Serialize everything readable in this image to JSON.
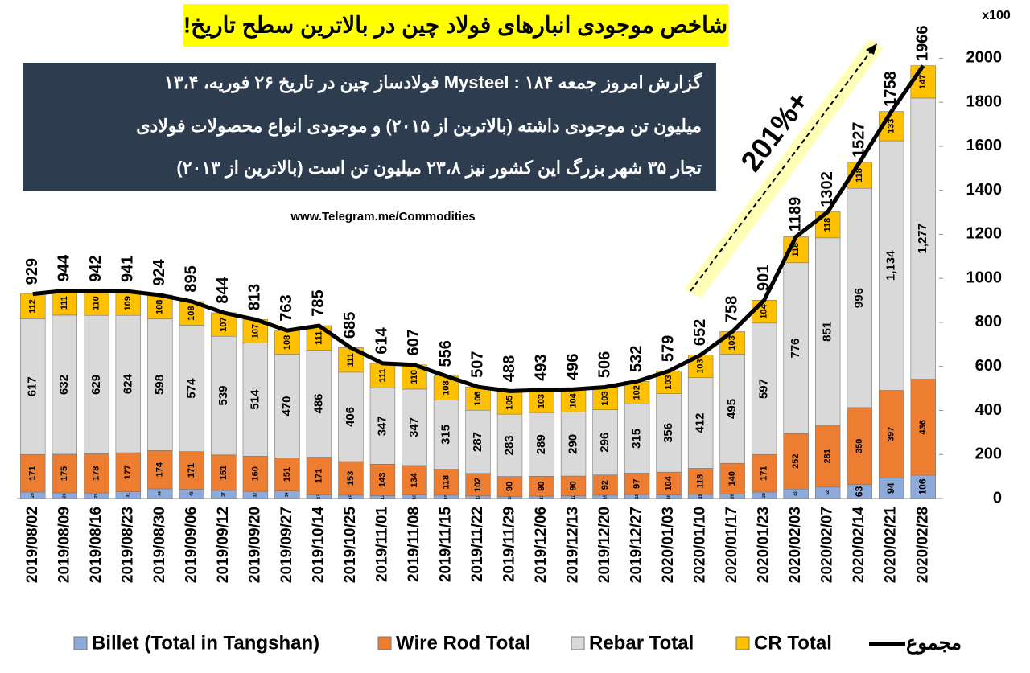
{
  "chart_data": {
    "type": "bar",
    "stacked": true,
    "title": "شاخص موجودی انبارهای فولاد چین در بالاترین سطح تاریخ!",
    "description": [
      "گزارش امروز جمعه Mysteel : ۱۸۴ فولادساز چین در تاریخ ۲۶ فوریه، ۱۳،۴",
      "میلیون تن موجودی داشته (بالاترین از ۲۰۱۵) و موجودی  انواع محصولات فولادی",
      "تجار  ۳۵ شهر بزرگ این کشور نیز ۲۳،۸ میلیون تن است (بالاترین از ۲۰۱۳)"
    ],
    "source": "www.Telegram.me/Commodities",
    "annotation": "201%+",
    "y_unit": "x100",
    "categories": [
      "2019/08/02",
      "2019/08/09",
      "2019/08/16",
      "2019/08/23",
      "2019/08/30",
      "2019/09/06",
      "2019/09/12",
      "2019/09/20",
      "2019/09/27",
      "2019/10/14",
      "2019/10/25",
      "2019/11/01",
      "2019/11/08",
      "2019/11/15",
      "2019/11/22",
      "2019/11/29",
      "2019/12/06",
      "2019/12/13",
      "2019/12/20",
      "2019/12/27",
      "2020/01/03",
      "2020/01/10",
      "2020/01/17",
      "2020/01/23",
      "2020/02/03",
      "2020/02/07",
      "2020/02/14",
      "2020/02/21",
      "2020/02/28"
    ],
    "series": [
      {
        "name": "Billet (Total in Tangshan)",
        "color": "#8eaadb",
        "values": [
          29,
          26,
          25,
          31,
          44,
          42,
          37,
          32,
          34,
          17,
          15,
          13,
          16,
          15,
          12,
          10,
          11,
          12,
          15,
          18,
          16,
          19,
          20,
          29,
          43,
          52,
          63,
          94,
          106
        ]
      },
      {
        "name": "Wire Rod Total",
        "color": "#ed7d31",
        "values": [
          171,
          175,
          178,
          177,
          174,
          171,
          161,
          160,
          151,
          171,
          153,
          143,
          134,
          118,
          102,
          90,
          90,
          90,
          92,
          97,
          104,
          118,
          140,
          171,
          252,
          281,
          350,
          397,
          436
        ]
      },
      {
        "name": "Rebar Total",
        "color": "#d9d9d9",
        "values": [
          617,
          632,
          629,
          624,
          598,
          574,
          539,
          514,
          470,
          486,
          406,
          347,
          347,
          315,
          287,
          283,
          289,
          290,
          296,
          315,
          356,
          412,
          495,
          597,
          776,
          851,
          996,
          1134,
          1277
        ],
        "value_labels": [
          "617",
          "632",
          "629",
          "624",
          "598",
          "574",
          "539",
          "514",
          "470",
          "486",
          "406",
          "347",
          "347",
          "315",
          "287",
          "283",
          "289",
          "290",
          "296",
          "315",
          "356",
          "412",
          "495",
          "597",
          "776",
          "851",
          "996",
          "1,134",
          "1,277"
        ]
      },
      {
        "name": "CR Total",
        "color": "#ffc000",
        "values": [
          112,
          111,
          110,
          109,
          108,
          108,
          107,
          107,
          108,
          111,
          111,
          111,
          110,
          108,
          106,
          105,
          103,
          104,
          103,
          102,
          103,
          103,
          103,
          104,
          118,
          118,
          118,
          133,
          147
        ]
      }
    ],
    "line_series": {
      "name": "مجموع",
      "color": "#000000",
      "values": [
        929,
        944,
        942,
        941,
        924,
        895,
        844,
        813,
        763,
        785,
        685,
        614,
        607,
        556,
        507,
        488,
        493,
        496,
        506,
        532,
        579,
        652,
        758,
        901,
        1189,
        1302,
        1527,
        1758,
        1966
      ]
    },
    "ylim": [
      0,
      2100
    ],
    "yticks": [
      0,
      200,
      400,
      600,
      800,
      1000,
      1200,
      1400,
      1600,
      1800,
      2000
    ],
    "legend": "bottom"
  }
}
